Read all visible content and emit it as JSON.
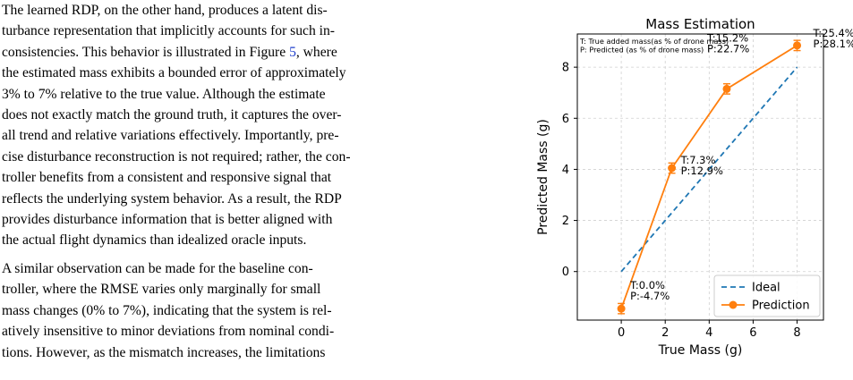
{
  "text": {
    "paragraphs": [
      {
        "lines": [
          "The learned RDP, on the other hand, produces a latent dis-",
          "turbance representation that implicitly accounts for such in-",
          "consistencies. This behavior is illustrated in Figure ",
          "the estimated mass exhibits a bounded error of approximately",
          "3% to 7% relative to the true value.  Although the estimate",
          "does not exactly match the ground truth, it captures the over-",
          "all trend and relative variations effectively. Importantly, pre-",
          "cise disturbance reconstruction is not required; rather, the con-",
          "troller benefits from a consistent and responsive signal that",
          "reflects the underlying system behavior. As a result, the RDP",
          "provides disturbance information that is better aligned with",
          "the actual flight dynamics than idealized oracle inputs."
        ],
        "figure_ref": "5",
        "figure_ref_suffix": ", where"
      },
      {
        "lines": [
          "A similar observation can be made for the baseline con-",
          "troller, where the RMSE varies only marginally for small",
          "mass changes (0% to 7%), indicating that the system is rel-",
          "atively insensitive to minor deviations from nominal condi-",
          "tions.  However, as the mismatch increases, the limitations"
        ]
      }
    ]
  },
  "chart_data": {
    "type": "line",
    "title": "Mass Estimation",
    "xlabel": "True Mass (g)",
    "ylabel": "Predicted Mass (g)",
    "xlim": [
      -2,
      9.2
    ],
    "ylim": [
      -1.9,
      9.3
    ],
    "xticks": [
      0,
      2,
      4,
      6,
      8
    ],
    "yticks": [
      0,
      2,
      4,
      6,
      8
    ],
    "grid": true,
    "legend_position": "lower-right",
    "series": [
      {
        "name": "Ideal",
        "style": "dashed",
        "color": "#1f77b4",
        "x": [
          0,
          8
        ],
        "y": [
          0,
          8
        ]
      },
      {
        "name": "Prediction",
        "style": "solid-markers-errorbars",
        "color": "#ff7f0e",
        "x": [
          0,
          2.3,
          4.8,
          8.0
        ],
        "y": [
          -1.45,
          4.05,
          7.15,
          8.85
        ],
        "yerr": [
          0.2,
          0.2,
          0.2,
          0.2
        ]
      }
    ],
    "point_annotations": [
      {
        "x": 0,
        "y": -1.45,
        "t_label": "T:0.0%",
        "p_label": "P:-4.7%"
      },
      {
        "x": 2.3,
        "y": 4.05,
        "t_label": "T:7.3%",
        "p_label": "P:12.9%"
      },
      {
        "x": 4.8,
        "y": 7.15,
        "t_label": "T:15.2%",
        "p_label": "P:22.7%"
      },
      {
        "x": 8.0,
        "y": 8.85,
        "t_label": "T:25.4%",
        "p_label": "P:28.1%"
      }
    ],
    "note_lines": [
      "T: True added mass(as % of drone mass)",
      "P: Predicted (as % of drone mass)"
    ]
  }
}
